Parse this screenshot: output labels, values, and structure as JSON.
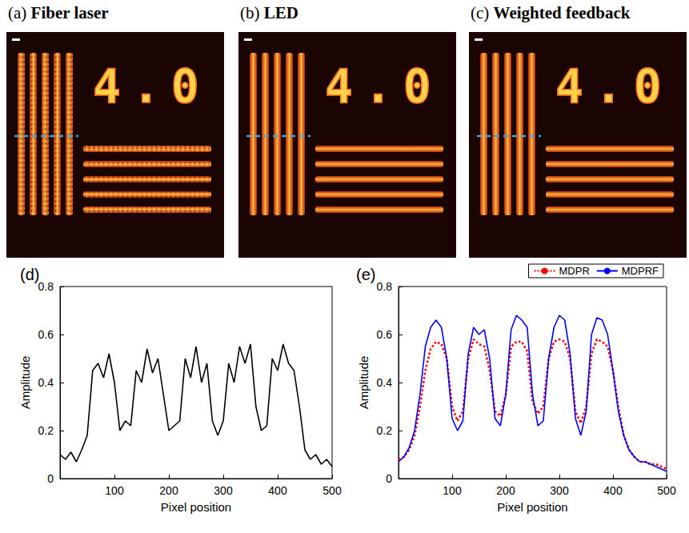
{
  "panels": [
    {
      "label": "(a)",
      "title": "Fiber laser",
      "text": "4.0"
    },
    {
      "label": "(b)",
      "title": "LED",
      "text": "4.0"
    },
    {
      "label": "(c)",
      "title": "Weighted feedback",
      "text": "4.0"
    }
  ],
  "chart_data": [
    {
      "type": "line",
      "title": "(d)",
      "xlabel": "Pixel position",
      "ylabel": "Amplitude",
      "xlim": [
        0,
        500
      ],
      "xticks": [
        100,
        200,
        300,
        400,
        500
      ],
      "ylim": [
        0,
        0.8
      ],
      "yticks": [
        0,
        0.2,
        0.4,
        0.6,
        0.8
      ],
      "grid": false,
      "x": [
        0,
        10,
        20,
        30,
        40,
        50,
        60,
        70,
        80,
        90,
        100,
        110,
        120,
        130,
        140,
        150,
        160,
        170,
        180,
        190,
        200,
        210,
        220,
        230,
        240,
        250,
        260,
        270,
        280,
        290,
        300,
        310,
        320,
        330,
        340,
        350,
        360,
        370,
        380,
        390,
        400,
        410,
        420,
        430,
        440,
        450,
        460,
        470,
        480,
        490,
        500
      ],
      "series": [
        {
          "color": "#000000",
          "line_style": "solid",
          "values": [
            0.1,
            0.08,
            0.11,
            0.07,
            0.12,
            0.18,
            0.45,
            0.48,
            0.42,
            0.52,
            0.4,
            0.2,
            0.24,
            0.22,
            0.45,
            0.4,
            0.54,
            0.44,
            0.5,
            0.35,
            0.2,
            0.22,
            0.24,
            0.5,
            0.42,
            0.55,
            0.4,
            0.48,
            0.24,
            0.18,
            0.24,
            0.48,
            0.4,
            0.55,
            0.48,
            0.56,
            0.3,
            0.2,
            0.22,
            0.5,
            0.45,
            0.56,
            0.48,
            0.45,
            0.3,
            0.12,
            0.08,
            0.1,
            0.06,
            0.08,
            0.05
          ]
        }
      ]
    },
    {
      "type": "line",
      "title": "(e)",
      "xlabel": "Pixel position",
      "ylabel": "Amplitude",
      "xlim": [
        0,
        500
      ],
      "xticks": [
        100,
        200,
        300,
        400,
        500
      ],
      "ylim": [
        0,
        0.8
      ],
      "yticks": [
        0,
        0.2,
        0.4,
        0.6,
        0.8
      ],
      "grid": false,
      "legend": "top",
      "x": [
        0,
        10,
        20,
        30,
        40,
        50,
        60,
        70,
        80,
        90,
        100,
        110,
        120,
        130,
        140,
        150,
        160,
        170,
        180,
        190,
        200,
        210,
        220,
        230,
        240,
        250,
        260,
        270,
        280,
        290,
        300,
        310,
        320,
        330,
        340,
        350,
        360,
        370,
        380,
        390,
        400,
        410,
        420,
        430,
        440,
        450,
        460,
        470,
        480,
        490,
        500
      ],
      "series": [
        {
          "name": "MDPR",
          "color": "#ff0000",
          "line_style": "dotted",
          "values": [
            0.08,
            0.09,
            0.12,
            0.18,
            0.3,
            0.45,
            0.54,
            0.57,
            0.56,
            0.5,
            0.3,
            0.24,
            0.28,
            0.5,
            0.58,
            0.56,
            0.55,
            0.45,
            0.28,
            0.26,
            0.35,
            0.55,
            0.57,
            0.57,
            0.53,
            0.32,
            0.27,
            0.3,
            0.5,
            0.57,
            0.58,
            0.57,
            0.5,
            0.28,
            0.23,
            0.3,
            0.52,
            0.58,
            0.57,
            0.55,
            0.45,
            0.3,
            0.18,
            0.12,
            0.09,
            0.07,
            0.07,
            0.06,
            0.06,
            0.05,
            0.04
          ]
        },
        {
          "name": "MDPRF",
          "color": "#0000ff",
          "line_style": "solid",
          "values": [
            0.07,
            0.09,
            0.13,
            0.2,
            0.35,
            0.55,
            0.63,
            0.66,
            0.63,
            0.5,
            0.25,
            0.2,
            0.24,
            0.52,
            0.63,
            0.6,
            0.62,
            0.5,
            0.25,
            0.22,
            0.35,
            0.62,
            0.68,
            0.66,
            0.63,
            0.35,
            0.22,
            0.24,
            0.5,
            0.63,
            0.68,
            0.66,
            0.52,
            0.25,
            0.18,
            0.28,
            0.6,
            0.67,
            0.66,
            0.6,
            0.45,
            0.28,
            0.18,
            0.12,
            0.09,
            0.07,
            0.07,
            0.06,
            0.05,
            0.04,
            0.03
          ]
        }
      ]
    }
  ]
}
